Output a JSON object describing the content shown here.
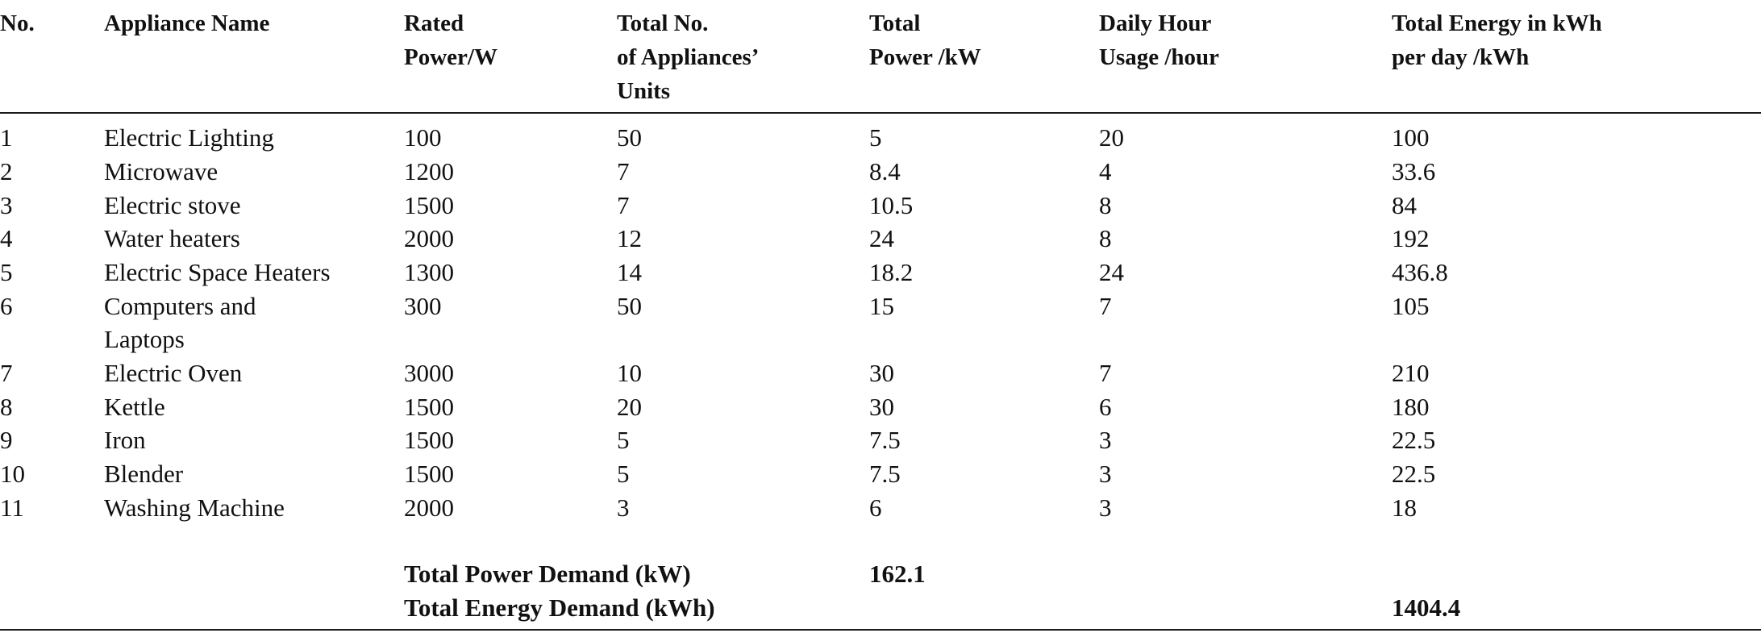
{
  "headers": {
    "no": "No.",
    "name": "Appliance Name",
    "rated": "Rated\nPower/W",
    "units": "Total No.\nof Appliances’\nUnits",
    "power": "Total\nPower /kW",
    "hours": "Daily Hour\nUsage /hour",
    "energy": "Total Energy in kWh\nper day /kWh"
  },
  "rows": [
    {
      "no": "1",
      "name": "Electric Lighting",
      "name2": "",
      "rated": "100",
      "units": "50",
      "power": "5",
      "hours": "20",
      "energy": "100"
    },
    {
      "no": "2",
      "name": "Microwave",
      "name2": "",
      "rated": "1200",
      "units": "7",
      "power": "8.4",
      "hours": "4",
      "energy": "33.6"
    },
    {
      "no": "3",
      "name": "Electric stove",
      "name2": "",
      "rated": "1500",
      "units": "7",
      "power": "10.5",
      "hours": "8",
      "energy": "84"
    },
    {
      "no": "4",
      "name": "Water heaters",
      "name2": "",
      "rated": "2000",
      "units": "12",
      "power": "24",
      "hours": "8",
      "energy": "192"
    },
    {
      "no": "5",
      "name": "Electric Space Heaters",
      "name2": "",
      "rated": "1300",
      "units": "14",
      "power": "18.2",
      "hours": "24",
      "energy": "436.8"
    },
    {
      "no": "6",
      "name": "Computers and",
      "name2": "Laptops",
      "rated": "300",
      "units": "50",
      "power": "15",
      "hours": "7",
      "energy": "105"
    },
    {
      "no": "7",
      "name": "Electric Oven",
      "name2": "",
      "rated": "3000",
      "units": "10",
      "power": "30",
      "hours": "7",
      "energy": "210"
    },
    {
      "no": "8",
      "name": "Kettle",
      "name2": "",
      "rated": "1500",
      "units": "20",
      "power": "30",
      "hours": "6",
      "energy": "180"
    },
    {
      "no": "9",
      "name": "Iron",
      "name2": "",
      "rated": "1500",
      "units": "5",
      "power": "7.5",
      "hours": "3",
      "energy": "22.5"
    },
    {
      "no": "10",
      "name": "Blender",
      "name2": "",
      "rated": "1500",
      "units": "5",
      "power": "7.5",
      "hours": "3",
      "energy": "22.5"
    },
    {
      "no": "11",
      "name": "Washing Machine",
      "name2": "",
      "rated": "2000",
      "units": "3",
      "power": "6",
      "hours": "3",
      "energy": "18"
    }
  ],
  "totals": {
    "power_label": "Total Power Demand (kW)",
    "power_value": "162.1",
    "energy_label": "Total Energy Demand (kWh)",
    "energy_value": "1404.4"
  }
}
